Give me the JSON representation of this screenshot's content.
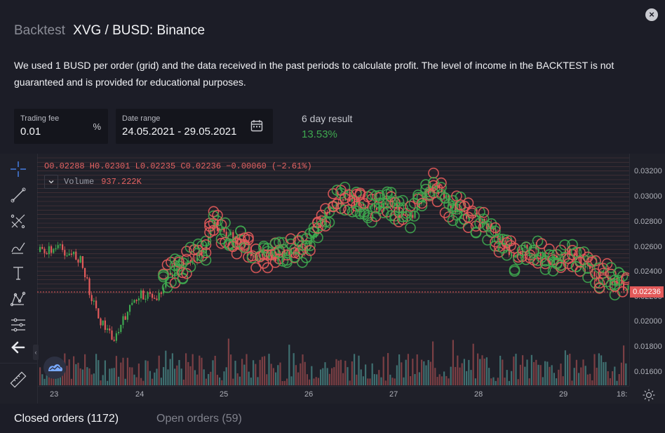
{
  "dialog": {
    "title_prefix": "Backtest",
    "title": "XVG / BUSD: Binance",
    "close_icon": "×",
    "description": "We used 1 BUSD per order (grid) and the data received in the past periods to calculate profit. The level of income in the BACKTEST is not guaranteed and is provided for educational purposes."
  },
  "fields": {
    "trading_fee": {
      "label": "Trading fee",
      "value": "0.01",
      "suffix": "%"
    },
    "date_range": {
      "label": "Date range",
      "value": "24.05.2021 - 29.05.2021",
      "icon": "calendar-icon"
    },
    "result": {
      "label": "6 day result",
      "value": "13.53%",
      "color": "#3ea84f"
    }
  },
  "chart": {
    "ohlc_text": "O0.02288  H0.02301  L0.02235  C0.02236  −0.00060 (−2.61%)",
    "volume_label": "Volume",
    "volume_value": "937.222K",
    "current_price": "0.02236",
    "price_ticks": [
      "0.03200",
      "0.03000",
      "0.02800",
      "0.02600",
      "0.02400",
      "0.02200",
      "0.02000",
      "0.01800",
      "0.01600"
    ],
    "time_ticks": [
      "23",
      "24",
      "25",
      "26",
      "27",
      "28",
      "29",
      "18:"
    ],
    "colors": {
      "up": "#3ea84f",
      "down": "#e35a5a",
      "bg": "#1f2029"
    },
    "tools": [
      "crosshair-icon",
      "trend-line-icon",
      "fib-icon",
      "brush-icon",
      "text-icon",
      "pattern-icon",
      "measure-icon",
      "back-arrow-icon",
      "ruler-icon"
    ]
  },
  "tabs": {
    "closed": "Closed orders (1172)",
    "open": "Open orders (59)"
  }
}
